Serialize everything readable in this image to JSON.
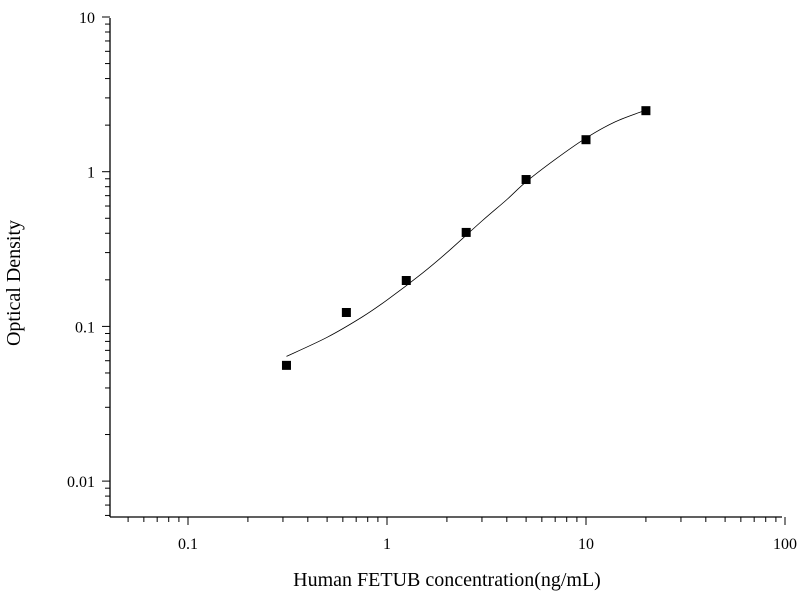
{
  "chart_data": {
    "type": "scatter",
    "xlabel": "Human FETUB concentration(ng/mL)",
    "ylabel": "Optical Density",
    "x_scale": "log",
    "y_scale": "log",
    "xlim": [
      0.04,
      100
    ],
    "ylim": [
      0.005,
      10
    ],
    "x_ticks": [
      {
        "value": 0.1,
        "label": "0.1"
      },
      {
        "value": 1,
        "label": "1"
      },
      {
        "value": 10,
        "label": "10"
      },
      {
        "value": 100,
        "label": "100"
      }
    ],
    "y_ticks": [
      {
        "value": 0.01,
        "label": "0.01"
      },
      {
        "value": 0.1,
        "label": "0.1"
      },
      {
        "value": 1,
        "label": "1"
      },
      {
        "value": 10,
        "label": "10"
      }
    ],
    "grid": false,
    "points": [
      {
        "x": 0.3125,
        "y": 0.056
      },
      {
        "x": 0.625,
        "y": 0.123
      },
      {
        "x": 1.25,
        "y": 0.198
      },
      {
        "x": 2.5,
        "y": 0.405
      },
      {
        "x": 5,
        "y": 0.89
      },
      {
        "x": 10,
        "y": 1.61
      },
      {
        "x": 20,
        "y": 2.48
      }
    ],
    "fit_curve": [
      {
        "x": 0.3125,
        "y": 0.064
      },
      {
        "x": 0.5,
        "y": 0.085
      },
      {
        "x": 0.75,
        "y": 0.115
      },
      {
        "x": 1,
        "y": 0.148
      },
      {
        "x": 1.5,
        "y": 0.22
      },
      {
        "x": 2,
        "y": 0.3
      },
      {
        "x": 3,
        "y": 0.48
      },
      {
        "x": 4,
        "y": 0.66
      },
      {
        "x": 5,
        "y": 0.86
      },
      {
        "x": 7,
        "y": 1.2
      },
      {
        "x": 10,
        "y": 1.65
      },
      {
        "x": 14,
        "y": 2.1
      },
      {
        "x": 20,
        "y": 2.5
      }
    ],
    "marker_color": "#000000",
    "line_color": "#000000"
  }
}
